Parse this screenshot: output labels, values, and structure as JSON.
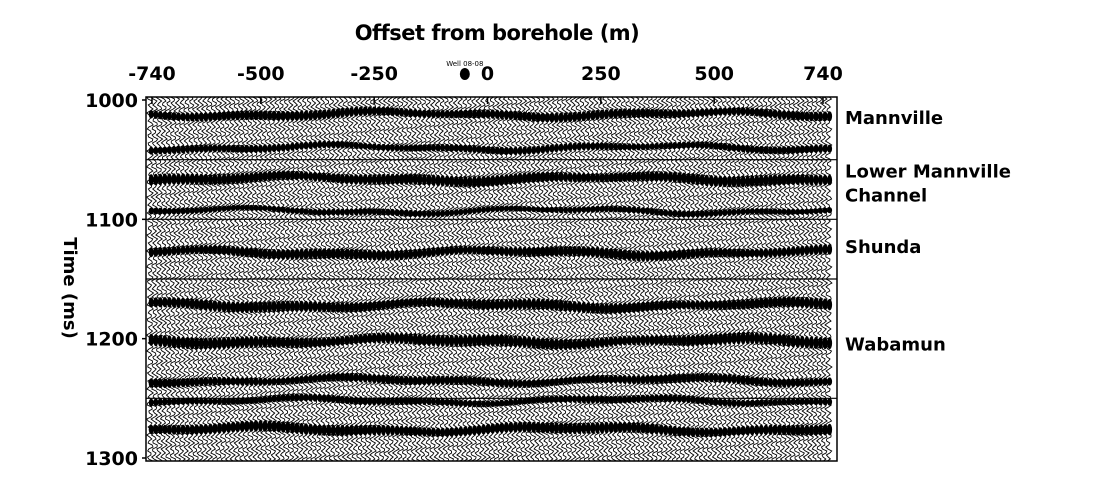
{
  "chart_data": {
    "type": "seismic-section",
    "title": "Offset from borehole (m)",
    "xlabel": "Offset from borehole (m)",
    "ylabel": "Time (ms)",
    "xlim": [
      -740,
      740
    ],
    "ylim": [
      1000,
      1300
    ],
    "y_inverted": true,
    "x_ticks": [
      {
        "value": -740,
        "label": "-740"
      },
      {
        "value": -500,
        "label": "-500"
      },
      {
        "value": -250,
        "label": "-250"
      },
      {
        "value": 0,
        "label": "0"
      },
      {
        "value": 250,
        "label": "250"
      },
      {
        "value": 500,
        "label": "500"
      },
      {
        "value": 740,
        "label": "740"
      }
    ],
    "y_ticks": [
      {
        "value": 1000,
        "label": "1000"
      },
      {
        "value": 1100,
        "label": "1100"
      },
      {
        "value": 1200,
        "label": "1200"
      },
      {
        "value": 1300,
        "label": "1300"
      }
    ],
    "grid_lines_ms": [
      1050,
      1100,
      1150,
      1250
    ],
    "well": {
      "label": "Well 08-08",
      "offset": -50
    },
    "horizons": [
      {
        "name": "Mannville",
        "time": 1015
      },
      {
        "name": "Lower Mannville",
        "time": 1060
      },
      {
        "name": "Channel",
        "time": 1080
      },
      {
        "name": "Shunda",
        "time": 1123
      },
      {
        "name": "Wabamun",
        "time": 1205
      }
    ],
    "reflectors": [
      {
        "time": 1012,
        "thickness": 4.2,
        "strength": 0.85
      },
      {
        "time": 1040,
        "thickness": 3.5,
        "strength": 0.8
      },
      {
        "time": 1066,
        "thickness": 4.5,
        "strength": 1.0
      },
      {
        "time": 1093,
        "thickness": 3.2,
        "strength": 0.7
      },
      {
        "time": 1128,
        "thickness": 4.5,
        "strength": 0.9
      },
      {
        "time": 1172,
        "thickness": 4.5,
        "strength": 1.0
      },
      {
        "time": 1202,
        "thickness": 4.8,
        "strength": 1.0
      },
      {
        "time": 1235,
        "thickness": 4.0,
        "strength": 0.85
      },
      {
        "time": 1252,
        "thickness": 3.5,
        "strength": 0.8
      },
      {
        "time": 1276,
        "thickness": 4.5,
        "strength": 1.0
      }
    ],
    "trace_count": 150,
    "trace_color": "#000000"
  }
}
